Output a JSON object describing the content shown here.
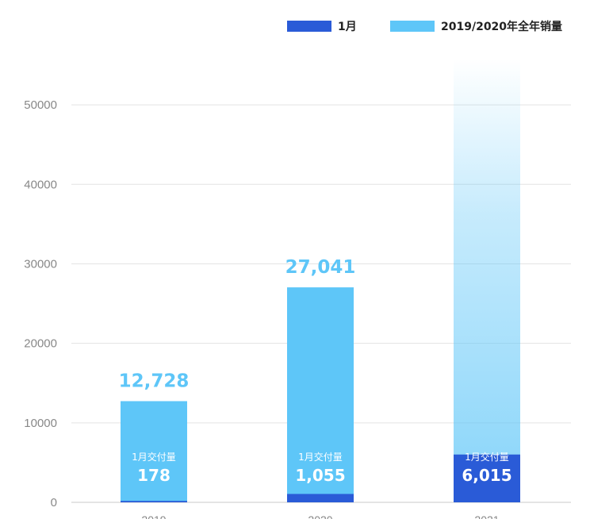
{
  "chart_data": {
    "type": "bar",
    "categories": [
      "2019",
      "2020",
      "2021"
    ],
    "series": [
      {
        "name": "1月",
        "values": [
          178,
          1055,
          6015
        ],
        "color": "#2a5bd7"
      },
      {
        "name": "2019/2020年全年销量",
        "values": [
          12728,
          27041,
          null
        ],
        "color": "#5ec6f8"
      }
    ],
    "ylim": [
      0,
      55000
    ],
    "yticks": [
      0,
      10000,
      20000,
      30000,
      40000,
      50000
    ],
    "grid": true,
    "legend": "top-right",
    "total_labels": [
      "12,728",
      "27,041",
      ""
    ],
    "inbar_caption": "1月交付量",
    "inbar_values": [
      "178",
      "1,055",
      "6,015"
    ],
    "projection_fade_color": "#5ec6f8"
  }
}
